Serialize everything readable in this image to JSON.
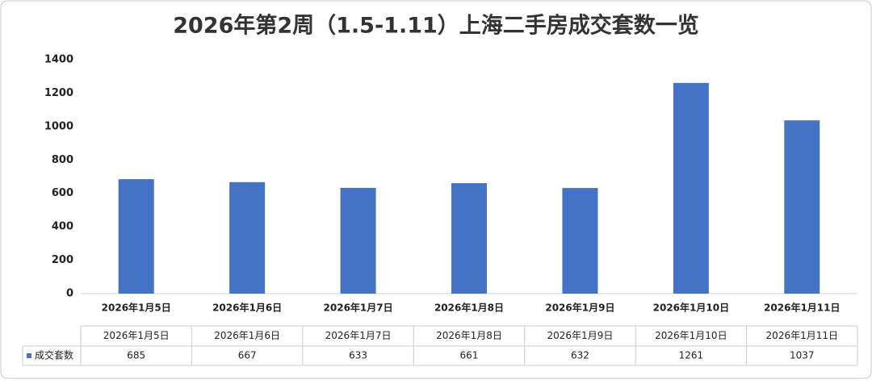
{
  "chart_data": {
    "type": "bar",
    "title": "2026年第2周（1.5-1.11）上海二手房成交套数一览",
    "categories": [
      "2026年1月5日",
      "2026年1月6日",
      "2026年1月7日",
      "2026年1月8日",
      "2026年1月9日",
      "2026年1月10日",
      "2026年1月11日"
    ],
    "series": [
      {
        "name": "成交套数",
        "color": "#4472c4",
        "values": [
          685,
          667,
          633,
          661,
          632,
          1261,
          1037
        ]
      }
    ],
    "ylim": [
      0,
      1400
    ],
    "yticks": [
      0,
      200,
      400,
      600,
      800,
      1000,
      1200,
      1400
    ],
    "grid": false
  }
}
